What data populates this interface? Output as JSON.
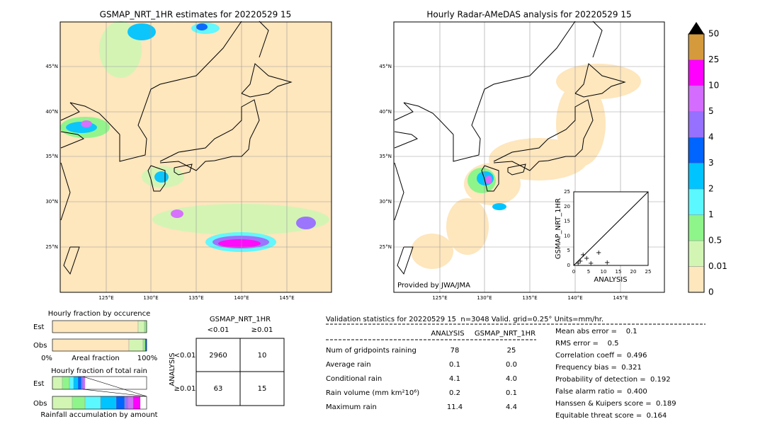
{
  "map_left": {
    "title": "GSMAP_NRT_1HR estimates for 20220529 15"
  },
  "map_right": {
    "title": "Hourly Radar-AMeDAS analysis for 20220529 15",
    "credit": "Provided by JWA/JMA",
    "inset": {
      "xlabel": "ANALYSIS",
      "ylabel": "GSMAP_NRT_1HR",
      "ticks": [
        "0",
        "5",
        "10",
        "15",
        "20",
        "25"
      ]
    }
  },
  "lat_labels": [
    "45°N",
    "40°N",
    "35°N",
    "30°N",
    "25°N"
  ],
  "lon_labels": [
    "125°E",
    "130°E",
    "135°E",
    "140°E",
    "145°E"
  ],
  "colorbar": {
    "labels": [
      "0",
      "0.01",
      "0.5",
      "1",
      "2",
      "3",
      "4",
      "5",
      "10",
      "25",
      "50"
    ],
    "colors": [
      "#fee6bd",
      "#d2f5b4",
      "#8ef58a",
      "#5cf8ff",
      "#00c4ff",
      "#0064ff",
      "#9670ff",
      "#d46cff",
      "#ff00ff",
      "#d49a3c"
    ]
  },
  "fraction_occurrence": {
    "title": "Hourly fraction by occurence",
    "rows": [
      "Est",
      "Obs"
    ],
    "axis": [
      "0%",
      "Areal fraction",
      "100%"
    ]
  },
  "fraction_total": {
    "title": "Hourly fraction of total rain",
    "rows": [
      "Est",
      "Obs"
    ],
    "footer": "Rainfall accumulation by amount"
  },
  "contingency": {
    "title": "GSMAP_NRT_1HR",
    "cols": [
      "<0.01",
      "≥0.01"
    ],
    "row_title": "ANALYSIS",
    "rows": [
      "<0.01",
      "≥0.01"
    ],
    "cells": [
      [
        "2960",
        "10"
      ],
      [
        "63",
        "15"
      ]
    ]
  },
  "validation": {
    "header": "Validation statistics for 20220529 15  n=3048 Valid. grid=0.25° Units=mm/hr.",
    "columns": [
      "ANALYSIS",
      "GSMAP_NRT_1HR"
    ],
    "rows": [
      [
        "Num of gridpoints raining",
        "78",
        "25"
      ],
      [
        "Average rain",
        "0.1",
        "0.0"
      ],
      [
        "Conditional rain",
        "4.1",
        "4.0"
      ],
      [
        "Rain volume (mm km²10⁶)",
        "0.2",
        "0.1"
      ],
      [
        "Maximum rain",
        "11.4",
        "4.4"
      ]
    ],
    "scores": [
      "Mean abs error =    0.1",
      "RMS error =    0.5",
      "Correlation coeff =  0.496",
      "Frequency bias =  0.321",
      "Probability of detection =  0.192",
      "False alarm ratio =  0.400",
      "Hanssen & Kuipers score =  0.189",
      "Equitable threat score =  0.164"
    ]
  }
}
